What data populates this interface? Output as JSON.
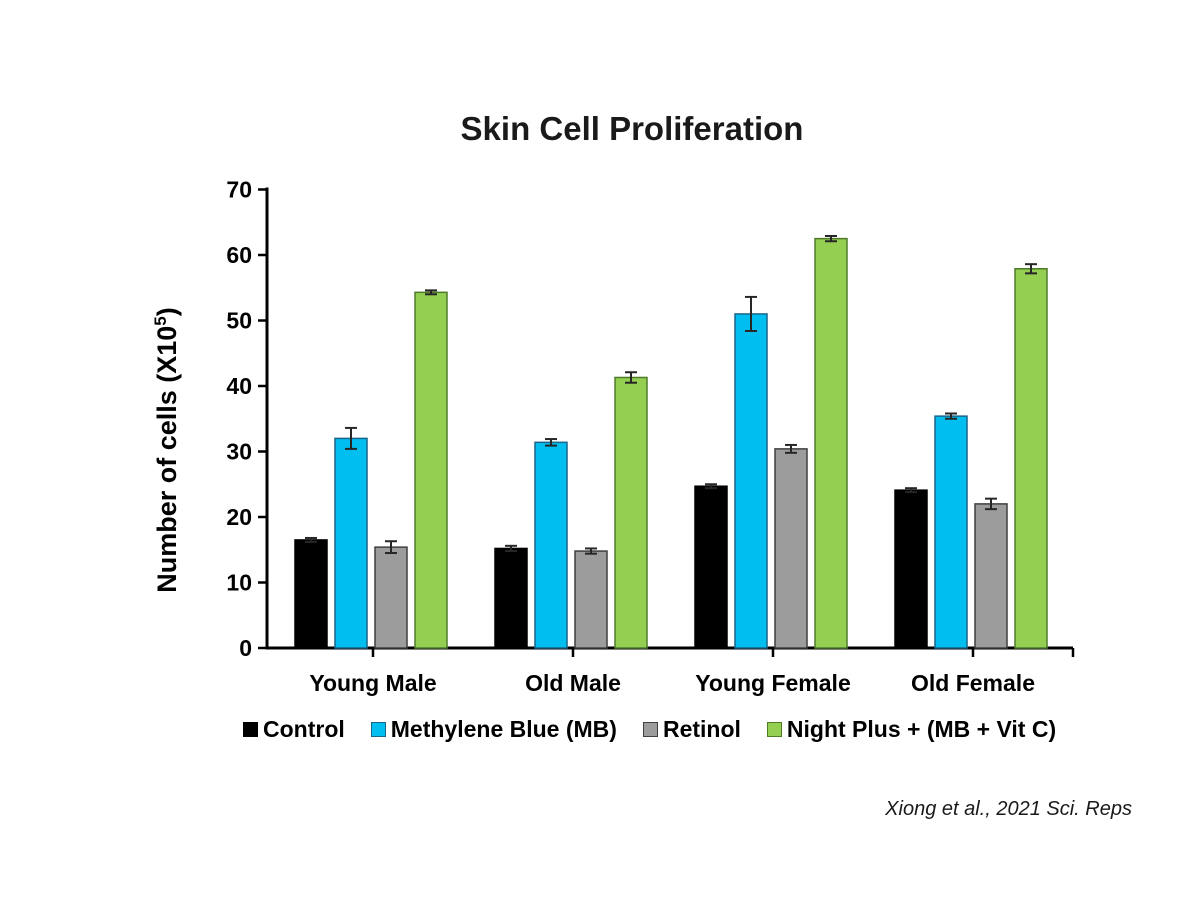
{
  "header": {
    "title": "Skin Cell Proliferation"
  },
  "footer": {
    "citation": "Xiong et al., 2021 Sci. Reps"
  },
  "chart_data": {
    "type": "bar",
    "title": "Skin Cell Proliferation",
    "xlabel": "",
    "ylabel_prefix": "Number of cells (X10",
    "ylabel_superscript": "5",
    "ylabel_suffix": ")",
    "categories": [
      "Young Male",
      "Old Male",
      "Young Female",
      "Old Female"
    ],
    "series": [
      {
        "name": "Control",
        "color": "#000000",
        "stroke": "#000000",
        "values": [
          16.5,
          15.2,
          24.7,
          24.1
        ],
        "errors": [
          0.3,
          0.4,
          0.3,
          0.3
        ]
      },
      {
        "name": "Methylene Blue (MB)",
        "color": "#00BEF0",
        "stroke": "#19658A",
        "values": [
          32.0,
          31.4,
          51.0,
          35.4
        ],
        "errors": [
          1.6,
          0.5,
          2.6,
          0.4
        ]
      },
      {
        "name": "Retinol",
        "color": "#9C9C9C",
        "stroke": "#3F3F3F",
        "values": [
          15.4,
          14.8,
          30.4,
          22.0
        ],
        "errors": [
          0.9,
          0.4,
          0.6,
          0.8
        ]
      },
      {
        "name": "Night Plus + (MB + Vit C)",
        "color": "#94CF52",
        "stroke": "#4F7B29",
        "values": [
          54.3,
          41.3,
          62.5,
          57.9
        ],
        "errors": [
          0.3,
          0.8,
          0.4,
          0.7
        ]
      }
    ],
    "ylim": [
      0,
      70
    ],
    "yticks": [
      0,
      10,
      20,
      30,
      40,
      50,
      60,
      70
    ],
    "grid": false,
    "legend_position": "bottom",
    "error_bar_color": "#262626",
    "axis_color": "#000000"
  }
}
